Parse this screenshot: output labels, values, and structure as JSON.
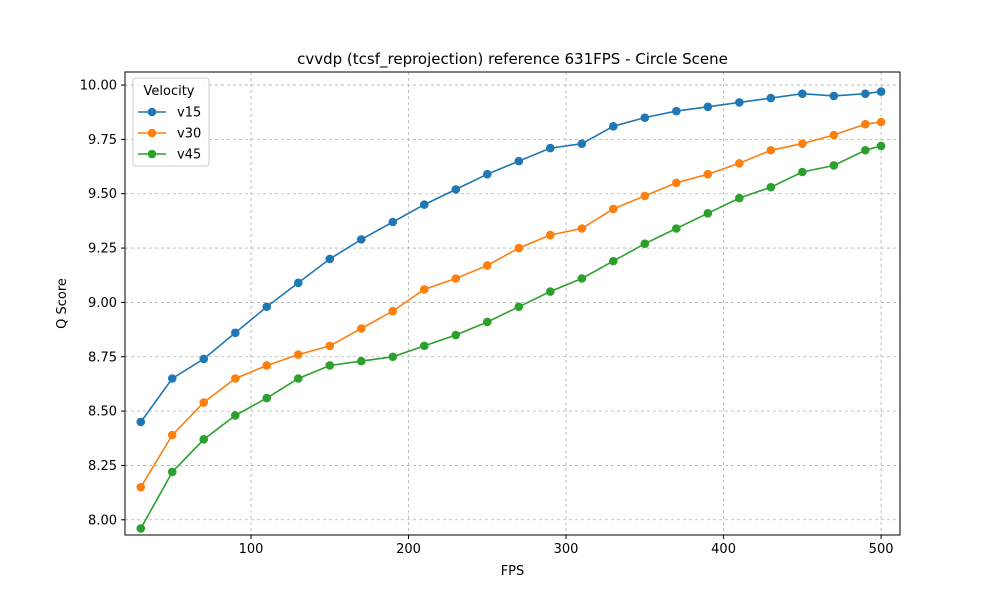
{
  "chart_data": {
    "type": "line",
    "title": "cvvdp (tcsf_reprojection) reference 631FPS - Circle Scene",
    "xlabel": "FPS",
    "ylabel": "Q Score",
    "xlim": [
      20,
      512
    ],
    "ylim": [
      7.93,
      10.06
    ],
    "x_ticks": [
      100,
      200,
      300,
      400,
      500
    ],
    "y_ticks": [
      8.0,
      8.25,
      8.5,
      8.75,
      9.0,
      9.25,
      9.5,
      9.75,
      10.0
    ],
    "grid": true,
    "legend": {
      "title": "Velocity",
      "placement": "top-left"
    },
    "x": [
      30,
      50,
      70,
      90,
      110,
      130,
      150,
      170,
      190,
      210,
      230,
      250,
      270,
      290,
      310,
      330,
      350,
      370,
      390,
      410,
      430,
      450,
      470,
      490,
      500
    ],
    "series": [
      {
        "name": "v15",
        "color": "#1f77b4",
        "values": [
          8.45,
          8.65,
          8.74,
          8.86,
          8.98,
          9.09,
          9.2,
          9.29,
          9.37,
          9.45,
          9.52,
          9.59,
          9.65,
          9.71,
          9.73,
          9.81,
          9.85,
          9.88,
          9.9,
          9.92,
          9.94,
          9.96,
          9.95,
          9.96,
          9.97
        ]
      },
      {
        "name": "v30",
        "color": "#ff7f0e",
        "values": [
          8.15,
          8.39,
          8.54,
          8.65,
          8.71,
          8.76,
          8.8,
          8.88,
          8.96,
          9.06,
          9.11,
          9.17,
          9.25,
          9.31,
          9.34,
          9.43,
          9.49,
          9.55,
          9.59,
          9.64,
          9.7,
          9.73,
          9.77,
          9.82,
          9.83
        ]
      },
      {
        "name": "v45",
        "color": "#2ca02c",
        "values": [
          7.96,
          8.22,
          8.37,
          8.48,
          8.56,
          8.65,
          8.71,
          8.73,
          8.75,
          8.8,
          8.85,
          8.91,
          8.98,
          9.05,
          9.11,
          9.19,
          9.27,
          9.34,
          9.41,
          9.48,
          9.53,
          9.6,
          9.63,
          9.7,
          9.72
        ]
      }
    ]
  }
}
